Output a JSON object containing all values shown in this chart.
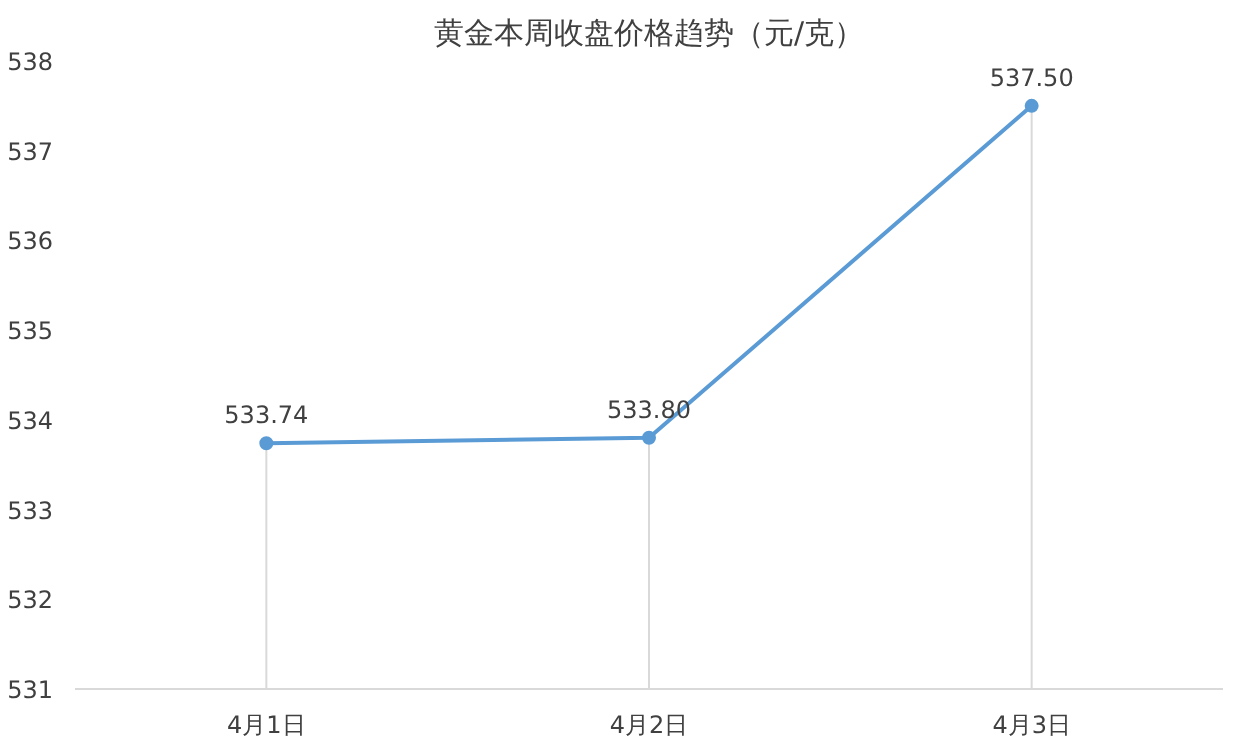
{
  "chart_data": {
    "type": "line",
    "title": "黄金本周收盘价格趋势（元/克）",
    "categories": [
      "4月1日",
      "4月2日",
      "4月3日"
    ],
    "series": [
      {
        "color": "#5b9bd5",
        "values": [
          533.74,
          533.8,
          537.5
        ],
        "value_labels": [
          "533.74",
          "533.80",
          "537.50"
        ]
      }
    ],
    "ylim": [
      531,
      538
    ],
    "yticks": [
      531,
      532,
      533,
      534,
      535,
      536,
      537,
      538
    ],
    "marker": "circle",
    "line_style": "solid",
    "grid": "x"
  }
}
